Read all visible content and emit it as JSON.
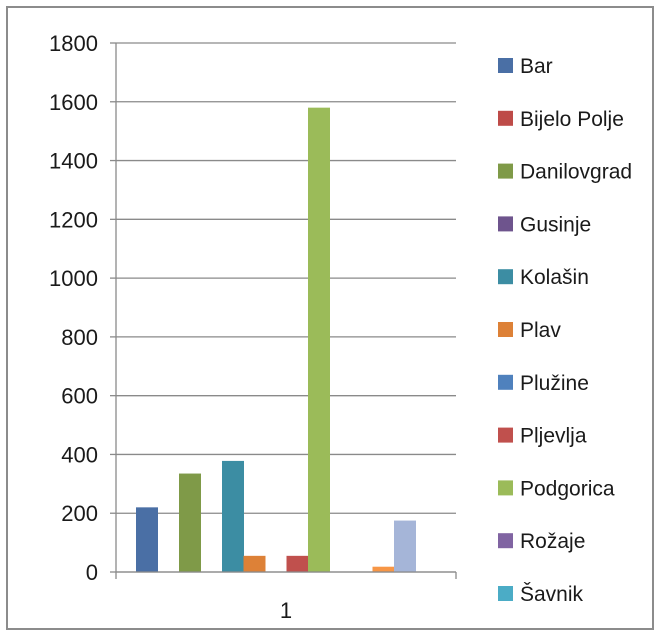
{
  "chart_data": {
    "type": "bar",
    "categories": [
      "1"
    ],
    "ylim": [
      0,
      1800
    ],
    "yticks": [
      0,
      200,
      400,
      600,
      800,
      1000,
      1200,
      1400,
      1600,
      1800
    ],
    "grid": true,
    "legend_position": "right",
    "series": [
      {
        "name": "Bar",
        "color": "#4a6fa5",
        "values": [
          220
        ]
      },
      {
        "name": "Bijelo Polje",
        "color": "#be4b48",
        "values": [
          null
        ]
      },
      {
        "name": "Danilovgrad",
        "color": "#7f9a48",
        "values": [
          335
        ]
      },
      {
        "name": "Gusinje",
        "color": "#6e548d",
        "values": [
          null
        ]
      },
      {
        "name": "Kolašin",
        "color": "#3c8da3",
        "values": [
          378
        ]
      },
      {
        "name": "Plav",
        "color": "#dd8137",
        "values": [
          55
        ]
      },
      {
        "name": "Plužine",
        "color": "#4f81bd",
        "values": [
          null
        ]
      },
      {
        "name": "Pljevlja",
        "color": "#c0504d",
        "values": [
          55
        ]
      },
      {
        "name": "Podgorica",
        "color": "#9bbb59",
        "values": [
          1580
        ]
      },
      {
        "name": "Rožaje",
        "color": "#8064a2",
        "values": [
          null
        ]
      },
      {
        "name": "Šavnik",
        "color": "#4bacc6",
        "values": [
          null
        ]
      },
      {
        "name": "",
        "color": "#f79646",
        "values": [
          18
        ]
      },
      {
        "name": "",
        "color": "#a5b5d8",
        "values": [
          175
        ]
      }
    ]
  }
}
